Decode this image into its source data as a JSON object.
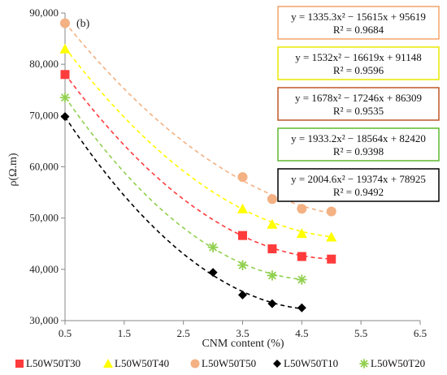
{
  "chart_data": {
    "type": "scatter",
    "panel_label": "(b)",
    "xlabel": "CNM content (%)",
    "ylabel": "ρ(Ω.m)",
    "xlim": [
      0.5,
      6.5
    ],
    "ylim": [
      30000,
      90000
    ],
    "x_ticks": [
      "0.5",
      "1.5",
      "2.5",
      "3.5",
      "4.5",
      "5.5",
      "6.5"
    ],
    "y_ticks": [
      "30,000",
      "40,000",
      "50,000",
      "60,000",
      "70,000",
      "80,000",
      "90,000"
    ],
    "grid": false,
    "legend_position": "bottom",
    "series": [
      {
        "name": "L50W50T30",
        "color": "#ff3b3b",
        "marker": "square",
        "points": [
          [
            0.5,
            78000
          ],
          [
            3.5,
            46600
          ],
          [
            4.0,
            44000
          ],
          [
            4.5,
            42500
          ],
          [
            5.0,
            42000
          ]
        ],
        "fit": {
          "a": 1678,
          "b": -17246,
          "c": 86309,
          "from": 0.5,
          "to": 5.0
        },
        "equation": "y = 1678x² − 17246x + 86309",
        "r2": "R² = 0.9535",
        "box_color": "#c0562a"
      },
      {
        "name": "L50W50T40",
        "color": "#ffff00",
        "marker": "triangle",
        "points": [
          [
            0.5,
            83000
          ],
          [
            3.5,
            51800
          ],
          [
            4.0,
            48800
          ],
          [
            4.5,
            47000
          ],
          [
            5.0,
            46300
          ]
        ],
        "fit": {
          "a": 1532,
          "b": -16619,
          "c": 91148,
          "from": 0.5,
          "to": 5.0
        },
        "equation": "y = 1532x² − 16619x + 91148",
        "r2": "R² = 0.9596",
        "box_color": "#e8e800"
      },
      {
        "name": "L50W50T50",
        "color": "#f4b183",
        "marker": "circle",
        "points": [
          [
            0.5,
            88000
          ],
          [
            3.5,
            58000
          ],
          [
            4.0,
            53700
          ],
          [
            4.5,
            51800
          ],
          [
            5.0,
            51300
          ]
        ],
        "fit": {
          "a": 1335.3,
          "b": -15615,
          "c": 95619,
          "from": 0.5,
          "to": 5.0
        },
        "equation": "y = 1335.3x² − 15615x + 95619",
        "r2": "R² = 0.9684",
        "box_color": "#f4a46a"
      },
      {
        "name": "L50W50T10",
        "color": "#000000",
        "marker": "diamond",
        "points": [
          [
            0.5,
            69800
          ],
          [
            3.0,
            39400
          ],
          [
            3.5,
            35000
          ],
          [
            4.0,
            33300
          ],
          [
            4.5,
            32500
          ]
        ],
        "fit": {
          "a": 2004.6,
          "b": -19374,
          "c": 78925,
          "from": 0.5,
          "to": 4.5
        },
        "equation": "y = 2004.6x² − 19374x + 78925",
        "r2": "R² = 0.9492",
        "box_color": "#000000"
      },
      {
        "name": "L50W50T20",
        "color": "#92d050",
        "marker": "asterisk",
        "points": [
          [
            0.5,
            73500
          ],
          [
            3.0,
            44300
          ],
          [
            3.5,
            40800
          ],
          [
            4.0,
            38800
          ],
          [
            4.5,
            38000
          ]
        ],
        "fit": {
          "a": 1933.2,
          "b": -18564,
          "c": 82420,
          "from": 0.5,
          "to": 4.5
        },
        "equation": "y = 1933.2x² − 18564x + 82420",
        "r2": "R² = 0.9398",
        "box_color": "#5fb830"
      }
    ],
    "equation_box_order": [
      "L50W50T50",
      "L50W50T40",
      "L50W50T30",
      "L50W50T20",
      "L50W50T10"
    ]
  }
}
